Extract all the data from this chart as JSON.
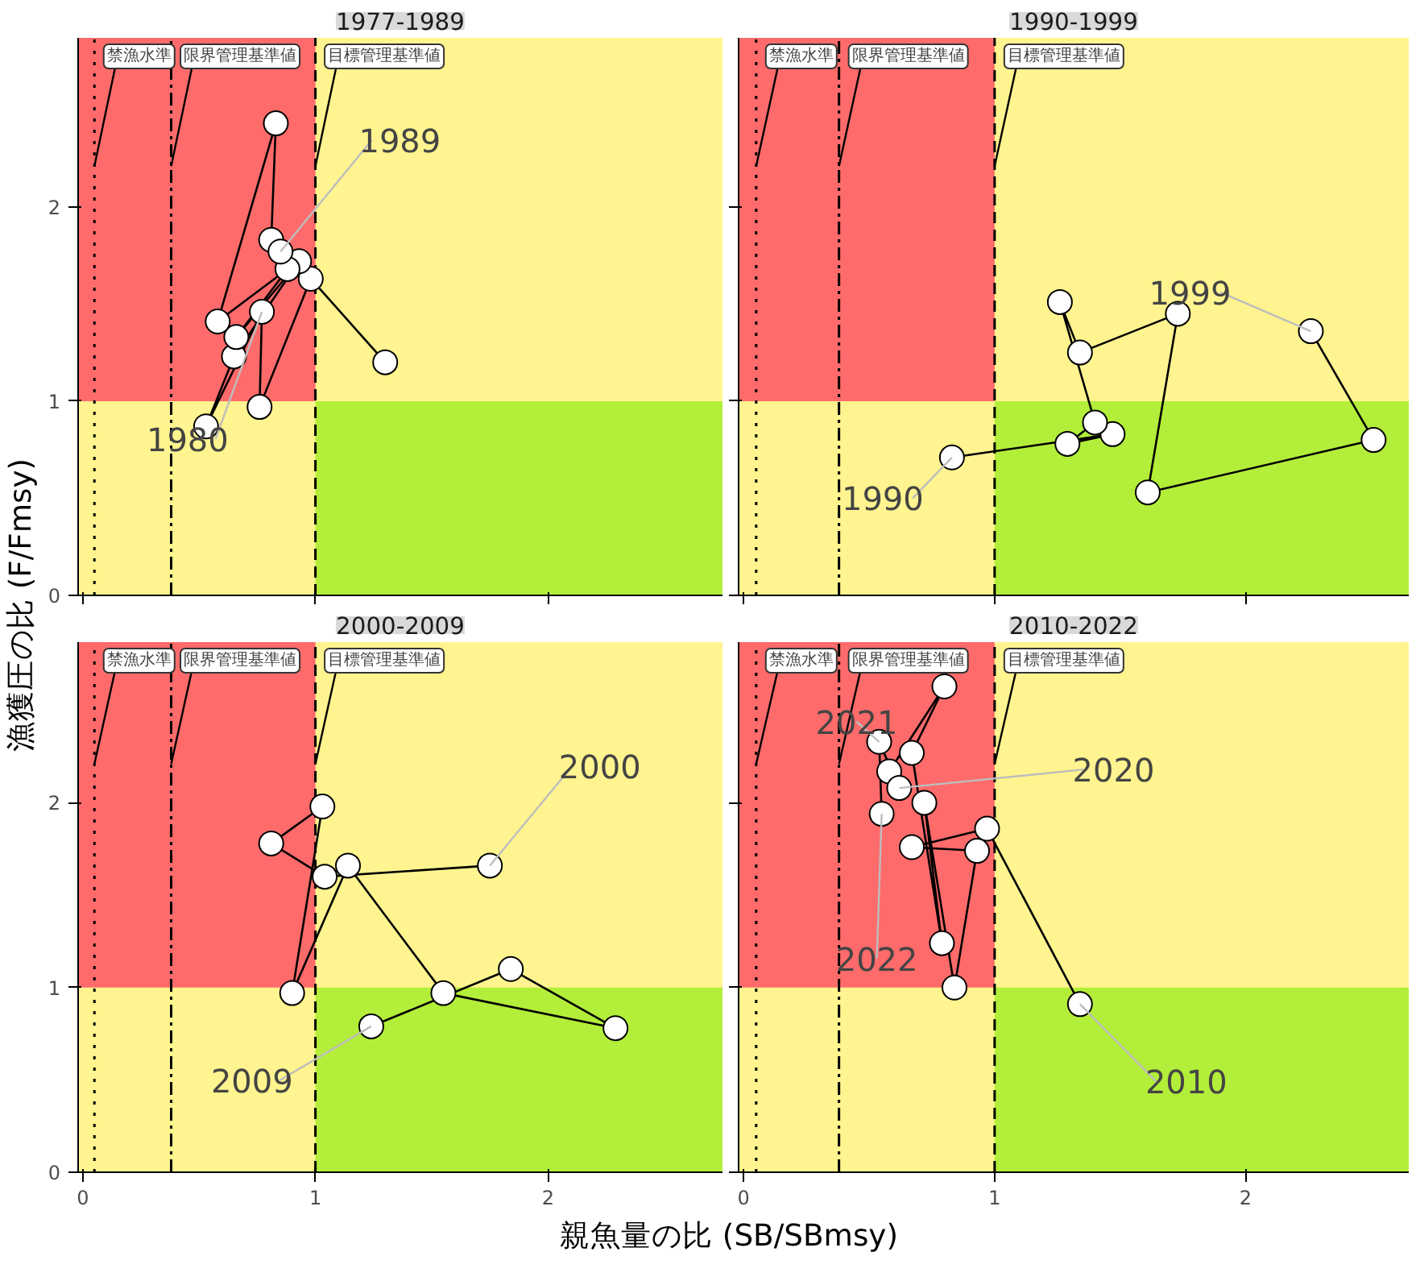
{
  "chart_data": [
    {
      "type": "line",
      "title": "1977-1989",
      "xlabel": "親魚量の比 (SB/SBmsy)",
      "ylabel": "漁獲圧の比 (F/Fmsy)",
      "xlim": [
        -0.02,
        2.75
      ],
      "ylim": [
        0,
        2.87
      ],
      "xticks": [
        0,
        1,
        2
      ],
      "yticks": [
        0,
        1,
        2
      ],
      "tick_labels": "y",
      "marker": "circle",
      "grid": false,
      "series": [
        {
          "color": "#000000",
          "x": [
            1.3,
            0.98,
            0.76,
            0.77,
            0.53,
            0.65,
            0.93,
            0.66,
            0.88,
            0.58,
            0.83,
            0.81,
            0.85
          ],
          "values": [
            1.2,
            1.63,
            0.97,
            1.46,
            0.87,
            1.23,
            1.72,
            1.33,
            1.68,
            1.41,
            2.43,
            1.83,
            1.77
          ]
        }
      ],
      "bands": [
        {
          "axis": "x",
          "from": -0.02,
          "to": 1,
          "color": "#ff6b6b"
        },
        {
          "axis": "x",
          "from": 1,
          "to": 2.75,
          "color": "#b3ee3a"
        }
      ],
      "ref_lines": [
        {
          "axis": "x",
          "value": 0.05,
          "label": "禁漁水準",
          "line_style": "dotted"
        },
        {
          "axis": "x",
          "value": 0.38,
          "label": "限界管理基準値",
          "line_style": "dotdash"
        },
        {
          "axis": "x",
          "value": 1,
          "label": "目標管理基準値",
          "line_style": "dashed"
        }
      ],
      "annotations": [
        {
          "text": "1980",
          "x": 0.77,
          "y": 1.46
        },
        {
          "text": "1989",
          "x": 0.85,
          "y": 1.77
        }
      ]
    },
    {
      "type": "line",
      "title": "1990-1999",
      "xlim": [
        -0.02,
        2.65
      ],
      "ylim": [
        0,
        2.87
      ],
      "xticks": [
        0,
        1,
        2
      ],
      "yticks": [
        0,
        1,
        2
      ],
      "tick_labels": false,
      "marker": "circle",
      "grid": false,
      "series": [
        {
          "color": "#000000",
          "x": [
            0.83,
            1.47,
            1.29,
            1.4,
            1.26,
            1.34,
            1.73,
            1.61,
            2.51,
            2.26
          ],
          "values": [
            0.71,
            0.83,
            0.78,
            0.89,
            1.51,
            1.25,
            1.45,
            0.53,
            0.8,
            1.36
          ]
        }
      ],
      "bands": [
        {
          "axis": "x",
          "from": -0.02,
          "to": 1,
          "color": "#ff6b6b"
        },
        {
          "axis": "x",
          "from": 1,
          "to": 2.65,
          "color": "#b3ee3a"
        }
      ],
      "ref_lines": [
        {
          "axis": "x",
          "value": 0.05,
          "label": "禁漁水準",
          "line_style": "dotted"
        },
        {
          "axis": "x",
          "value": 0.38,
          "label": "限界管理基準値",
          "line_style": "dotdash"
        },
        {
          "axis": "x",
          "value": 1,
          "label": "目標管理基準値",
          "line_style": "dashed"
        }
      ],
      "annotations": [
        {
          "text": "1990",
          "x": 0.83,
          "y": 0.71
        },
        {
          "text": "1999",
          "x": 2.26,
          "y": 1.36
        }
      ]
    },
    {
      "type": "line",
      "title": "2000-2009",
      "xlim": [
        -0.02,
        2.75
      ],
      "ylim": [
        0,
        2.87
      ],
      "xticks": [
        0,
        1,
        2
      ],
      "yticks": [
        0,
        1,
        2
      ],
      "marker": "circle",
      "grid": false,
      "series": [
        {
          "color": "#000000",
          "x": [
            1.75,
            1.04,
            0.81,
            1.03,
            0.9,
            1.14,
            1.55,
            2.29,
            1.84,
            1.24
          ],
          "values": [
            1.66,
            1.6,
            1.78,
            1.98,
            0.97,
            1.66,
            0.97,
            0.78,
            1.1,
            0.79
          ]
        }
      ],
      "bands": [
        {
          "axis": "x",
          "from": -0.02,
          "to": 1,
          "color": "#ff6b6b"
        },
        {
          "axis": "x",
          "from": 1,
          "to": 2.75,
          "color": "#b3ee3a"
        }
      ],
      "ref_lines": [
        {
          "axis": "x",
          "value": 0.05,
          "label": "禁漁水準",
          "line_style": "dotted"
        },
        {
          "axis": "x",
          "value": 0.38,
          "label": "限界管理基準値",
          "line_style": "dotdash"
        },
        {
          "axis": "x",
          "value": 1,
          "label": "目標管理基準値",
          "line_style": "dashed"
        }
      ],
      "annotations": [
        {
          "text": "2000",
          "x": 1.75,
          "y": 1.66
        },
        {
          "text": "2009",
          "x": 1.24,
          "y": 0.79
        }
      ]
    },
    {
      "type": "line",
      "title": "2010-2022",
      "xlim": [
        -0.02,
        2.65
      ],
      "ylim": [
        0,
        2.87
      ],
      "xticks": [
        0,
        1,
        2
      ],
      "yticks": [
        0,
        1,
        2
      ],
      "tick_labels": "x",
      "marker": "circle",
      "grid": false,
      "series": [
        {
          "color": "#000000",
          "x": [
            1.34,
            0.97,
            0.67,
            0.93,
            0.84,
            0.72,
            0.79,
            0.67,
            0.8,
            0.58,
            0.62,
            0.54,
            0.55
          ],
          "values": [
            0.91,
            1.86,
            1.76,
            1.74,
            1.0,
            2.0,
            1.24,
            2.27,
            2.63,
            2.17,
            2.08,
            2.33,
            1.94
          ]
        }
      ],
      "bands": [
        {
          "axis": "x",
          "from": -0.02,
          "to": 1,
          "color": "#ff6b6b"
        },
        {
          "axis": "x",
          "from": 1,
          "to": 2.65,
          "color": "#b3ee3a"
        }
      ],
      "ref_lines": [
        {
          "axis": "x",
          "value": 0.05,
          "label": "禁漁水準",
          "line_style": "dotted"
        },
        {
          "axis": "x",
          "value": 0.38,
          "label": "限界管理基準値",
          "line_style": "dotdash"
        },
        {
          "axis": "x",
          "value": 1,
          "label": "目標管理基準値",
          "line_style": "dashed"
        }
      ],
      "annotations": [
        {
          "text": "2010",
          "x": 1.34,
          "y": 0.91
        },
        {
          "text": "2020",
          "x": 0.62,
          "y": 2.08
        },
        {
          "text": "2021",
          "x": 0.54,
          "y": 2.33
        },
        {
          "text": "2022",
          "x": 0.55,
          "y": 1.94
        }
      ]
    }
  ]
}
